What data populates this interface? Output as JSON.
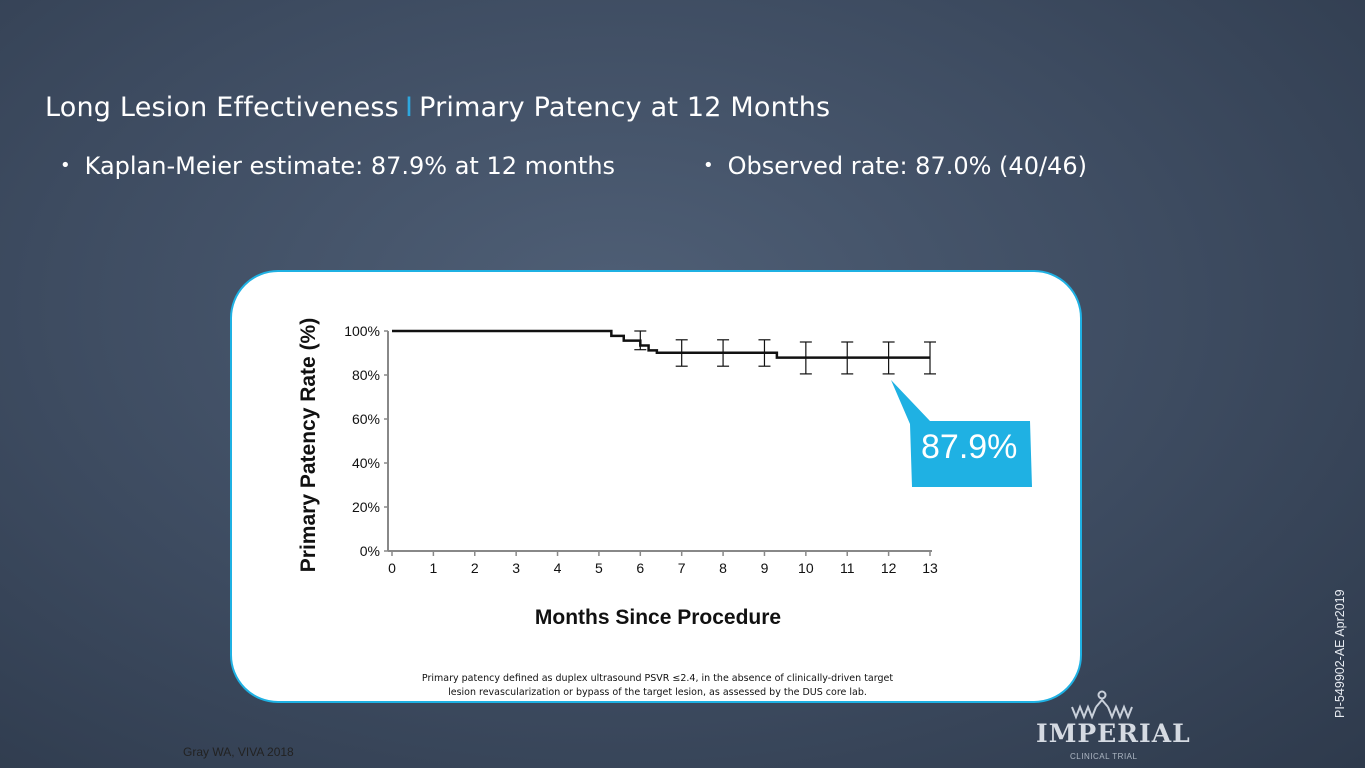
{
  "title": {
    "main": "Long Lesion Effectiveness",
    "separator": "I",
    "sub": "Primary Patency at 12 Months"
  },
  "bullets": [
    {
      "marker": "•",
      "text": "Kaplan-Meier estimate: 87.9% at 12 months"
    },
    {
      "marker": "•",
      "text": "Observed rate: 87.0% (40/46)"
    }
  ],
  "callout": {
    "text": "87.9%",
    "color": "#1fb1e3"
  },
  "chart_data": {
    "type": "line",
    "subtype": "kaplan-meier step curve with error bars",
    "title": "",
    "xlabel": "Months Since Procedure",
    "ylabel": "Primary Patency Rate (%)",
    "xlim": [
      0,
      13
    ],
    "ylim": [
      0,
      100
    ],
    "x_ticks": [
      "0",
      "1",
      "2",
      "3",
      "4",
      "5",
      "6",
      "7",
      "8",
      "9",
      "10",
      "11",
      "12",
      "13"
    ],
    "y_ticks": [
      {
        "value": 0,
        "label": "0%"
      },
      {
        "value": 20,
        "label": "20%"
      },
      {
        "value": 40,
        "label": "40%"
      },
      {
        "value": 60,
        "label": "60%"
      },
      {
        "value": 80,
        "label": "80%"
      },
      {
        "value": 100,
        "label": "100%"
      }
    ],
    "curve_steps": [
      {
        "x": 0,
        "y": 100
      },
      {
        "x": 5.3,
        "y": 97.8
      },
      {
        "x": 5.6,
        "y": 95.6
      },
      {
        "x": 6.0,
        "y": 93.4
      },
      {
        "x": 6.2,
        "y": 91.2
      },
      {
        "x": 6.4,
        "y": 90.1
      },
      {
        "x": 9.3,
        "y": 87.9
      },
      {
        "x": 13,
        "y": 87.9
      }
    ],
    "error_bars": [
      {
        "x": 6,
        "y": 95.6,
        "low": 91.5,
        "high": 100
      },
      {
        "x": 7,
        "y": 90.1,
        "low": 84.0,
        "high": 96.0
      },
      {
        "x": 8,
        "y": 90.1,
        "low": 84.0,
        "high": 96.0
      },
      {
        "x": 9,
        "y": 90.1,
        "low": 84.0,
        "high": 96.0
      },
      {
        "x": 10,
        "y": 87.9,
        "low": 80.5,
        "high": 95.0
      },
      {
        "x": 11,
        "y": 87.9,
        "low": 80.5,
        "high": 95.0
      },
      {
        "x": 12,
        "y": 87.9,
        "low": 80.5,
        "high": 95.0
      },
      {
        "x": 13,
        "y": 87.9,
        "low": 80.5,
        "high": 95.0
      }
    ]
  },
  "footnote": {
    "line1": "Primary patency defined as duplex ultrasound PSVR ≤2.4, in the absence of clinically-driven target",
    "line2": "lesion revascularization or bypass of the target lesion, as assessed by the DUS core lab."
  },
  "citation": "Gray WA, VIVA 2018",
  "doc_id": "PI-549902-AE Apr2019",
  "logo": {
    "name": "IMPERIAL",
    "subtitle": "CLINICAL TRIAL"
  }
}
